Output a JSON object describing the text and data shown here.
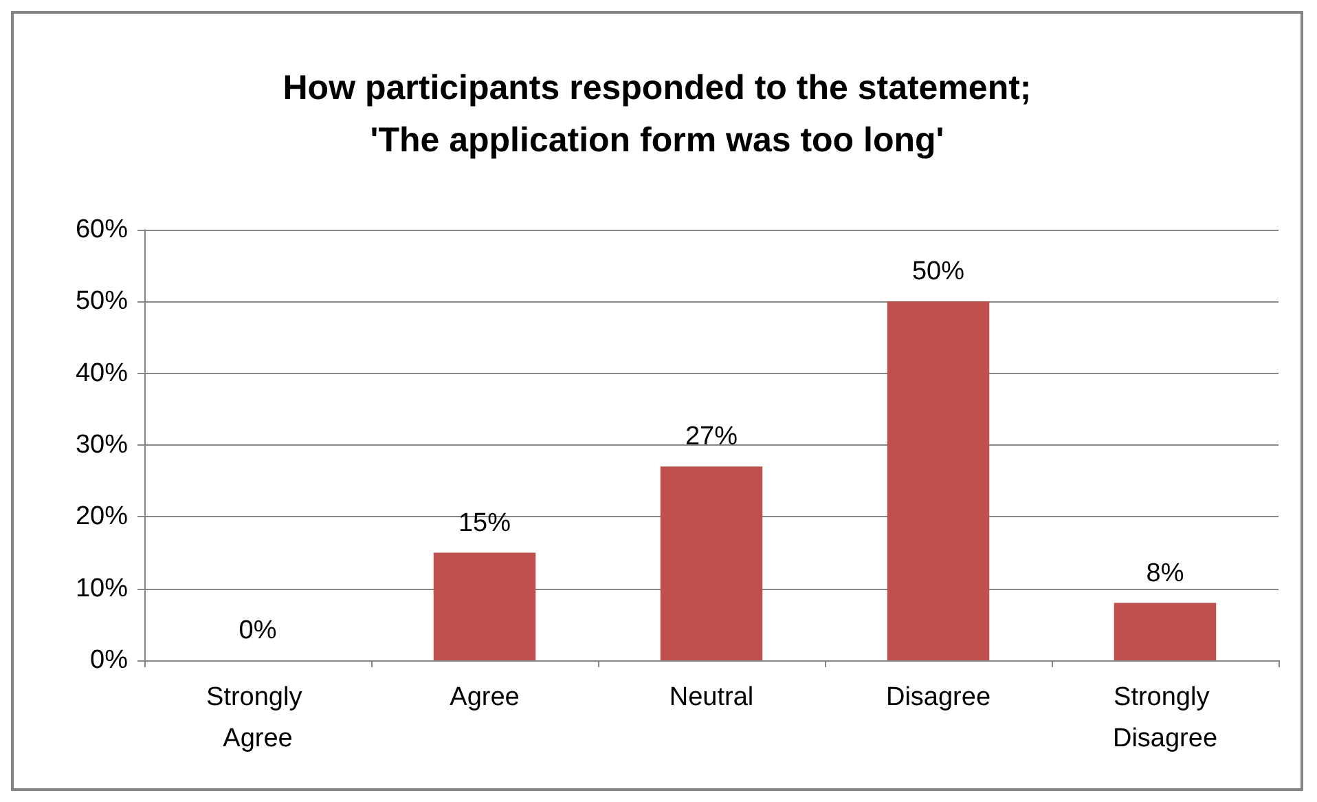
{
  "chart_data": {
    "type": "bar",
    "title": "How participants responded to the statement;\n'The application form was too long'",
    "categories": [
      "Strongly Agree",
      "Agree",
      "Neutral",
      "Disagree",
      "Strongly Disagree"
    ],
    "values": [
      0,
      15,
      27,
      50,
      8
    ],
    "value_labels": [
      "0%",
      "15%",
      "27%",
      "50%",
      "8%"
    ],
    "color": "#c0504d",
    "ylim": [
      0,
      60
    ],
    "yticks": [
      {
        "value": 0,
        "label": "0%"
      },
      {
        "value": 10,
        "label": "10%"
      },
      {
        "value": 20,
        "label": "20%"
      },
      {
        "value": 30,
        "label": "30%"
      },
      {
        "value": 40,
        "label": "40%"
      },
      {
        "value": 50,
        "label": "50%"
      },
      {
        "value": 60,
        "label": "60%"
      }
    ],
    "grid": "y"
  }
}
